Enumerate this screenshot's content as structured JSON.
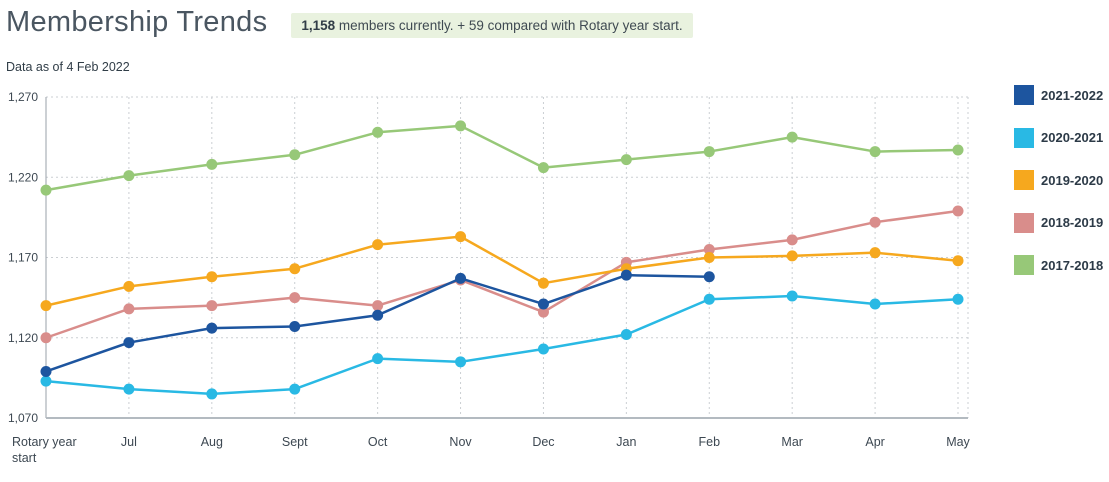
{
  "header": {
    "title": "Membership Trends",
    "badge": {
      "count": "1,158",
      "text": " members currently. + 59 compared with Rotary year start."
    },
    "data_as_of": "Data as of 4 Feb 2022"
  },
  "chart_data": {
    "type": "line",
    "title": "Membership Trends",
    "categories": [
      "Rotary year start",
      "Jul",
      "Aug",
      "Sept",
      "Oct",
      "Nov",
      "Dec",
      "Jan",
      "Feb",
      "Mar",
      "Apr",
      "May"
    ],
    "series": [
      {
        "name": "2021-2022",
        "color": "#1d559f",
        "values": [
          1099,
          1117,
          1126,
          1127,
          1134,
          1157,
          1141,
          1159,
          1158,
          null,
          null,
          null
        ]
      },
      {
        "name": "2020-2021",
        "color": "#29b9e4",
        "values": [
          1093,
          1088,
          1085,
          1088,
          1107,
          1105,
          1113,
          1122,
          1144,
          1146,
          1141,
          1144
        ]
      },
      {
        "name": "2019-2020",
        "color": "#f6a81e",
        "values": [
          1140,
          1152,
          1158,
          1163,
          1178,
          1183,
          1154,
          1163,
          1170,
          1171,
          1173,
          1168
        ]
      },
      {
        "name": "2018-2019",
        "color": "#d98d8b",
        "values": [
          1120,
          1138,
          1140,
          1145,
          1140,
          1156,
          1136,
          1167,
          1175,
          1181,
          1192,
          1199
        ]
      },
      {
        "name": "2017-2018",
        "color": "#97c878",
        "values": [
          1212,
          1221,
          1228,
          1234,
          1248,
          1252,
          1226,
          1231,
          1236,
          1245,
          1236,
          1237
        ]
      }
    ],
    "ylim": [
      1070,
      1270
    ],
    "y_ticks": [
      1270,
      1220,
      1170,
      1120,
      1070
    ],
    "xlabel": "",
    "ylabel": "",
    "grid": "dotted",
    "legend_position": "right"
  }
}
